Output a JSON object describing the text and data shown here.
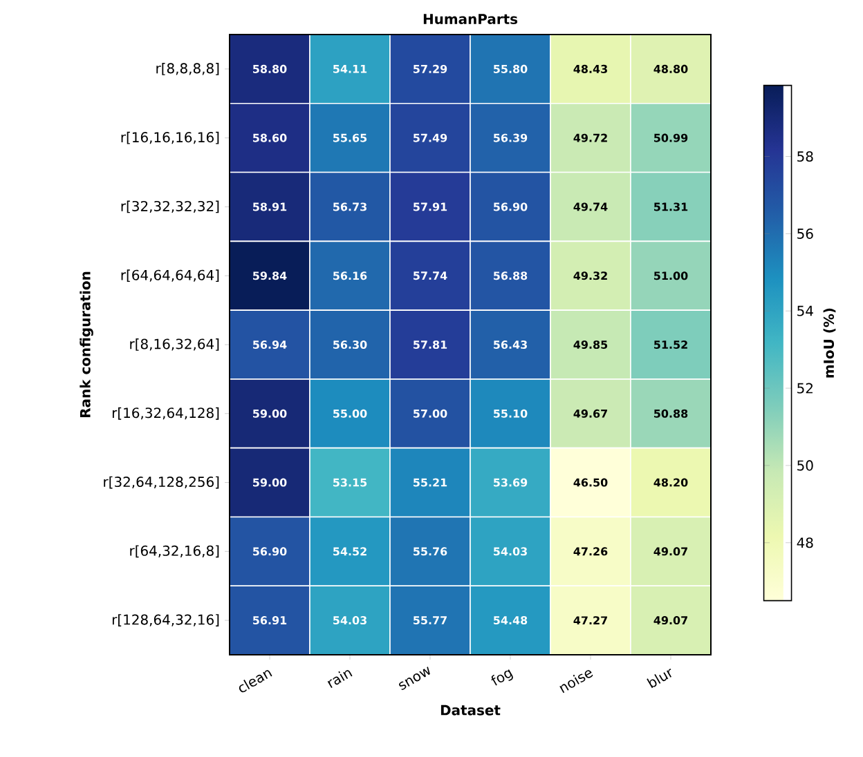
{
  "chart_data": {
    "type": "heatmap",
    "title": "HumanParts",
    "xlabel": "Dataset",
    "ylabel": "Rank configuration",
    "clabel": "mIoU (%)",
    "categories": [
      "clean",
      "rain",
      "snow",
      "fog",
      "noise",
      "blur"
    ],
    "y_categories": [
      "r[8,8,8,8]",
      "r[16,16,16,16]",
      "r[32,32,32,32]",
      "r[64,64,64,64]",
      "r[8,16,32,64]",
      "r[16,32,64,128]",
      "r[32,64,128,256]",
      "r[64,32,16,8]",
      "r[128,64,32,16]"
    ],
    "cells": [
      [
        58.8,
        54.11,
        57.29,
        55.8,
        48.43,
        48.8
      ],
      [
        58.6,
        55.65,
        57.49,
        56.39,
        49.72,
        50.99
      ],
      [
        58.91,
        56.73,
        57.91,
        56.9,
        49.74,
        51.31
      ],
      [
        59.84,
        56.16,
        57.74,
        56.88,
        49.32,
        51.0
      ],
      [
        56.94,
        56.3,
        57.81,
        56.43,
        49.85,
        51.52
      ],
      [
        59.0,
        55.0,
        57.0,
        55.1,
        49.67,
        50.88
      ],
      [
        59.0,
        53.15,
        55.21,
        53.69,
        46.5,
        48.2
      ],
      [
        56.9,
        54.52,
        55.76,
        54.03,
        47.26,
        49.07
      ],
      [
        56.91,
        54.03,
        55.77,
        54.48,
        47.27,
        49.07
      ]
    ],
    "cell_labels": [
      [
        "58.80",
        "54.11",
        "57.29",
        "55.80",
        "48.43",
        "48.80"
      ],
      [
        "58.60",
        "55.65",
        "57.49",
        "56.39",
        "49.72",
        "50.99"
      ],
      [
        "58.91",
        "56.73",
        "57.91",
        "56.90",
        "49.74",
        "51.31"
      ],
      [
        "59.84",
        "56.16",
        "57.74",
        "56.88",
        "49.32",
        "51.00"
      ],
      [
        "56.94",
        "56.30",
        "57.81",
        "56.43",
        "49.85",
        "51.52"
      ],
      [
        "59.00",
        "55.00",
        "57.00",
        "55.10",
        "49.67",
        "50.88"
      ],
      [
        "59.00",
        "53.15",
        "55.21",
        "53.69",
        "46.50",
        "48.20"
      ],
      [
        "56.90",
        "54.52",
        "55.76",
        "54.03",
        "47.26",
        "49.07"
      ],
      [
        "56.91",
        "54.03",
        "55.77",
        "54.48",
        "47.27",
        "49.07"
      ]
    ],
    "clim": [
      46.5,
      59.84
    ],
    "cticks": [
      48,
      50,
      52,
      54,
      56,
      58
    ]
  }
}
